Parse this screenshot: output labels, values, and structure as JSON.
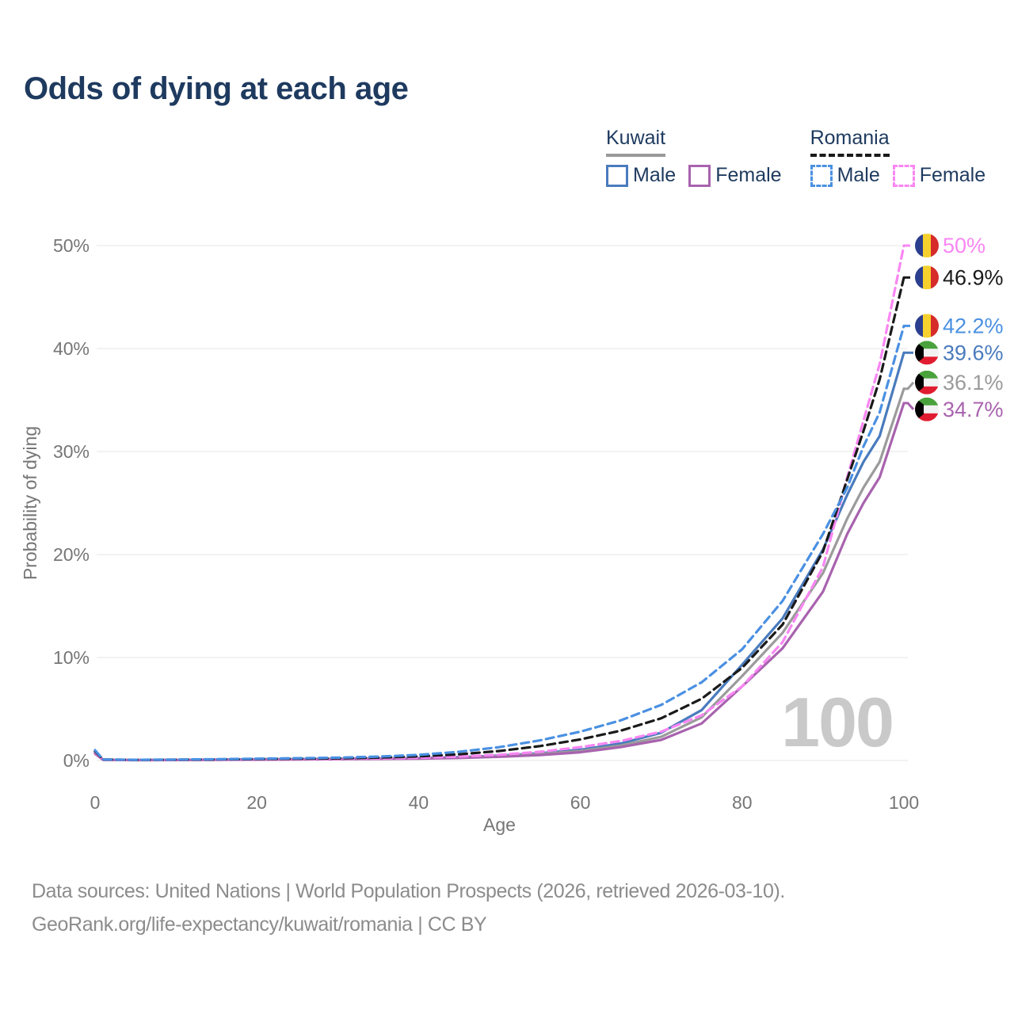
{
  "title": "Odds of dying at each age",
  "watermark": "100",
  "legend": {
    "groups": [
      {
        "country": "Kuwait",
        "line_style": "solid",
        "line_color": "#999999",
        "items": [
          {
            "label": "Male",
            "color": "#4a7bbd",
            "dashed": false
          },
          {
            "label": "Female",
            "color": "#a863ae",
            "dashed": false
          }
        ]
      },
      {
        "country": "Romania",
        "line_style": "dashed",
        "line_color": "#1a1a1a",
        "items": [
          {
            "label": "Male",
            "color": "#4a90e2",
            "dashed": true
          },
          {
            "label": "Female",
            "color": "#f986f3",
            "dashed": true
          }
        ]
      }
    ]
  },
  "footer": {
    "line1": "Data sources: United Nations | World Population Prospects (2026, retrieved 2026-03-10).",
    "line2": "GeoRank.org/life-expectancy/kuwait/romania | CC BY"
  },
  "chart_data": {
    "type": "line",
    "title": "Odds of dying at each age",
    "xlabel": "Age",
    "ylabel": "Probability of dying",
    "xlim": [
      0,
      100
    ],
    "ylim": [
      0,
      50
    ],
    "grid": true,
    "legend_position": "top-right",
    "xticks": [
      0,
      20,
      40,
      60,
      80,
      100
    ],
    "yticks": [
      {
        "value": 0,
        "label": "0%"
      },
      {
        "value": 10,
        "label": "10%"
      },
      {
        "value": 20,
        "label": "20%"
      },
      {
        "value": 30,
        "label": "30%"
      },
      {
        "value": 40,
        "label": "40%"
      },
      {
        "value": 50,
        "label": "50%"
      }
    ],
    "axis_color": "#767676",
    "grid_color": "#eaeaea",
    "ages": [
      0,
      1,
      5,
      10,
      15,
      20,
      25,
      30,
      35,
      40,
      45,
      50,
      55,
      60,
      65,
      70,
      75,
      80,
      85,
      90,
      93,
      95,
      97,
      100
    ],
    "series": [
      {
        "name": "Romania Female",
        "country": "Romania",
        "sex": "female",
        "color": "#f986f3",
        "line_style": "dashed",
        "flag": "romania",
        "end_label": "50%",
        "end_value": 50.0,
        "values": [
          0.8,
          0.08,
          0.05,
          0.06,
          0.08,
          0.1,
          0.12,
          0.15,
          0.19,
          0.26,
          0.38,
          0.56,
          0.85,
          1.3,
          1.9,
          2.8,
          4.4,
          7.2,
          11.5,
          18.8,
          27.5,
          33.0,
          38.5,
          50.0
        ]
      },
      {
        "name": "Romania Both sexes",
        "country": "Romania",
        "sex": "both",
        "color": "#1a1a1a",
        "line_style": "dashed",
        "flag": "romania",
        "end_label": "46.9%",
        "end_value": 46.9,
        "values": [
          0.9,
          0.09,
          0.06,
          0.08,
          0.1,
          0.14,
          0.17,
          0.21,
          0.28,
          0.4,
          0.6,
          0.92,
          1.4,
          2.05,
          2.9,
          4.1,
          6.0,
          9.0,
          13.2,
          20.3,
          27.3,
          32.0,
          37.0,
          46.9
        ]
      },
      {
        "name": "Romania Male",
        "country": "Romania",
        "sex": "male",
        "color": "#4a90e2",
        "line_style": "dashed",
        "flag": "romania",
        "end_label": "42.2%",
        "end_value": 42.2,
        "values": [
          1.0,
          0.1,
          0.07,
          0.09,
          0.12,
          0.18,
          0.22,
          0.28,
          0.38,
          0.55,
          0.85,
          1.3,
          1.95,
          2.8,
          3.9,
          5.4,
          7.6,
          10.8,
          15.5,
          22.0,
          26.5,
          30.5,
          33.8,
          42.2
        ]
      },
      {
        "name": "Kuwait Male",
        "country": "Kuwait",
        "sex": "male",
        "color": "#4a7bbd",
        "line_style": "solid",
        "flag": "kuwait",
        "end_label": "39.6%",
        "end_value": 39.6,
        "values": [
          0.75,
          0.08,
          0.05,
          0.06,
          0.09,
          0.12,
          0.14,
          0.16,
          0.19,
          0.24,
          0.33,
          0.47,
          0.7,
          1.05,
          1.65,
          2.7,
          4.9,
          9.3,
          13.8,
          20.5,
          25.8,
          29.0,
          31.5,
          39.6
        ]
      },
      {
        "name": "Kuwait Both sexes",
        "country": "Kuwait",
        "sex": "both",
        "color": "#9b9b9b",
        "line_style": "solid",
        "flag": "kuwait",
        "end_label": "36.1%",
        "end_value": 36.1,
        "values": [
          0.7,
          0.07,
          0.04,
          0.05,
          0.08,
          0.1,
          0.12,
          0.14,
          0.17,
          0.21,
          0.29,
          0.42,
          0.62,
          0.92,
          1.45,
          2.3,
          4.2,
          8.2,
          12.4,
          18.2,
          23.5,
          26.5,
          29.0,
          36.1
        ]
      },
      {
        "name": "Kuwait Female",
        "country": "Kuwait",
        "sex": "female",
        "color": "#a863ae",
        "line_style": "solid",
        "flag": "kuwait",
        "end_label": "34.7%",
        "end_value": 34.7,
        "values": [
          0.65,
          0.06,
          0.04,
          0.05,
          0.06,
          0.08,
          0.1,
          0.12,
          0.15,
          0.18,
          0.25,
          0.36,
          0.53,
          0.8,
          1.3,
          2.0,
          3.6,
          7.2,
          10.9,
          16.4,
          22.0,
          25.0,
          27.5,
          34.7
        ]
      }
    ],
    "flag_colors": {
      "romania": {
        "blue": "#2c3f8f",
        "yellow": "#f6d02c",
        "red": "#d62b2b"
      },
      "kuwait": {
        "green": "#4aa23c",
        "white": "#f2f2f2",
        "red": "#e11c30",
        "black": "#000000"
      }
    }
  }
}
